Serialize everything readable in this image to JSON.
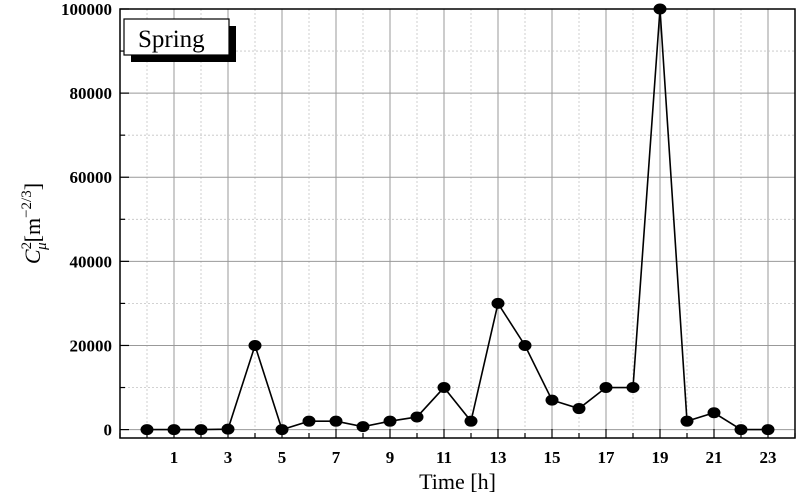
{
  "chart_data": {
    "type": "line",
    "title": "",
    "xlabel": "Time [h]",
    "ylabel": "",
    "ylabel_parts": {
      "base": "C",
      "sup": "2",
      "sub": "μ",
      "unit_open": "[m",
      "unit_sup": "−2/3",
      "unit_close": "]"
    },
    "legend_label": "Spring",
    "legend_position": "top-left",
    "grid": true,
    "xlim": [
      -1,
      24
    ],
    "ylim": [
      -2000,
      100000
    ],
    "x_ticks": [
      1,
      3,
      5,
      7,
      9,
      11,
      13,
      15,
      17,
      19,
      21,
      23
    ],
    "y_ticks": [
      0,
      20000,
      40000,
      60000,
      80000,
      100000
    ],
    "series": [
      {
        "x": [
          0,
          1,
          2,
          3,
          4,
          5,
          6,
          7,
          8,
          9,
          10,
          11,
          12,
          13,
          14,
          15,
          16,
          17,
          18,
          19,
          20,
          21,
          22,
          23
        ],
        "y": [
          0,
          0,
          0,
          100,
          20000,
          0,
          2000,
          2000,
          700,
          2000,
          3000,
          10000,
          2000,
          30000,
          20000,
          7000,
          5000,
          10000,
          10000,
          100000,
          2000,
          4000,
          0,
          0
        ],
        "color": "#000000"
      }
    ]
  }
}
